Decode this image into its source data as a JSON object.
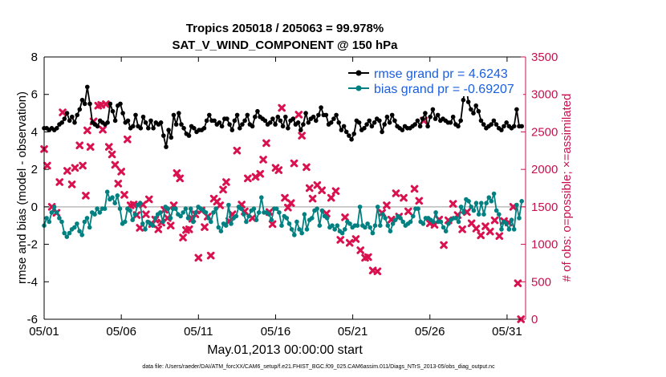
{
  "chart_data": {
    "type": "line",
    "title_line1": "Tropics 205018 / 205063 = 99.978%",
    "title_line2": "SAT_V_WIND_COMPONENT @ 150 hPa",
    "xlabel": "May.01,2013 00:00:00 start",
    "ylabel_left": "rmse and bias (model - observation)",
    "ylabel_right": "# of obs: o=possible; ×=assimilated",
    "footer": "data file: /Users/raeder/DAI/ATM_forcXX/CAM6_setup/f.e21.FHIST_BGC.f09_025.CAM6assim.011/Diags_NTrS_2013-05/obs_diag_output.nc",
    "x_ticks": [
      {
        "label": "05/01",
        "day": 1
      },
      {
        "label": "05/06",
        "day": 6
      },
      {
        "label": "05/11",
        "day": 11
      },
      {
        "label": "05/16",
        "day": 16
      },
      {
        "label": "05/21",
        "day": 21
      },
      {
        "label": "05/26",
        "day": 26
      },
      {
        "label": "05/31",
        "day": 31
      }
    ],
    "xlim": [
      1,
      32.2
    ],
    "ylim_left": [
      -6,
      8
    ],
    "y_ticks_left": [
      "-6",
      "-4",
      "-2",
      "0",
      "2",
      "4",
      "6",
      "8"
    ],
    "ylim_right": [
      0,
      3500
    ],
    "y_ticks_right": [
      "0",
      "500",
      "1000",
      "1500",
      "2000",
      "2500",
      "3000",
      "3500"
    ],
    "legend": [
      {
        "label": "rmse grand pr = 4.6243",
        "color": "#000000"
      },
      {
        "label": "bias grand pr = -0.69207",
        "color": "#008080"
      }
    ],
    "colors": {
      "rmse": "#000000",
      "bias": "#008080",
      "obs": "#d9124f",
      "right_axis": "#c8104f",
      "legend_text": "#1a5fe0",
      "zero_line": "#bbbbbb"
    },
    "series": [
      {
        "name": "rmse",
        "values": [
          4.2,
          4.2,
          4.1,
          4.2,
          4.1,
          4.2,
          4.4,
          4.5,
          4.7,
          5.0,
          4.6,
          4.8,
          4.5,
          4.9,
          5.2,
          5.7,
          5.5,
          6.4,
          5.5,
          4.5,
          4.4,
          4.3,
          4.6,
          4.5,
          4.4,
          4.5,
          5.5,
          5.1,
          4.6,
          5.4,
          5.5,
          5.0,
          4.5,
          4.6,
          4.2,
          4.3,
          4.9,
          4.3,
          4.2,
          4.8,
          4.5,
          4.2,
          4.6,
          4.2,
          4.5,
          4.4,
          4.5,
          3.8,
          3.2,
          4.1,
          3.7,
          4.9,
          4.4,
          5.0,
          4.4,
          4.2,
          3.9,
          3.8,
          4.3,
          4.2,
          4.0,
          4.1,
          4.1,
          4.2,
          4.6,
          4.9,
          4.6,
          4.6,
          4.4,
          4.5,
          4.3,
          4.7,
          4.7,
          4.4,
          4.1,
          4.6,
          4.9,
          4.2,
          4.4,
          4.6,
          4.9,
          4.4,
          4.3,
          4.8,
          5.1,
          4.8,
          4.7,
          4.6,
          4.4,
          4.5,
          4.7,
          4.4,
          4.8,
          4.6,
          4.3,
          4.8,
          4.2,
          4.6,
          4.7,
          4.4,
          4.5,
          4.1,
          4.4,
          5.0,
          4.5,
          4.7,
          4.8,
          4.6,
          4.9,
          5.3,
          4.9,
          4.9,
          4.4,
          4.5,
          4.7,
          4.9,
          4.5,
          4.1,
          4.3,
          4.0,
          3.8,
          3.6,
          3.9,
          4.6,
          4.5,
          4.1,
          4.2,
          4.4,
          4.6,
          4.3,
          4.5,
          4.7,
          4.6,
          4.0,
          4.4,
          4.8,
          4.5,
          4.9,
          4.6,
          4.3,
          4.2,
          4.1,
          4.3,
          4.2,
          4.2,
          4.3,
          4.4,
          4.6,
          4.3,
          4.7,
          5.0,
          4.3,
          4.8,
          5.2,
          4.7,
          4.9,
          4.6,
          4.7,
          4.6,
          4.5,
          4.5,
          4.8,
          4.4,
          4.3,
          4.6,
          5.7,
          6.6,
          5.6,
          5.2,
          5.0,
          5.4,
          5.1,
          4.6,
          4.4,
          4.2,
          4.3,
          4.4,
          4.6,
          4.4,
          4.2,
          4.1,
          4.3,
          4.5,
          4.3,
          4.2,
          4.3,
          5.2,
          4.3,
          4.3
        ]
      },
      {
        "name": "bias",
        "values": [
          -1.0,
          -0.6,
          -0.8,
          -0.3,
          0.0,
          -0.3,
          -0.6,
          -0.8,
          -1.4,
          -1.6,
          -1.4,
          -1.2,
          -1.1,
          -0.9,
          -1.3,
          -1.5,
          -0.8,
          -0.6,
          -1.1,
          -0.3,
          -0.4,
          -0.1,
          -0.3,
          -0.1,
          -0.1,
          0.8,
          0.4,
          0.5,
          0.2,
          0.6,
          -0.1,
          -0.9,
          -0.8,
          -0.1,
          -0.2,
          -0.7,
          -0.4,
          0.1,
          0.2,
          -0.9,
          -1.2,
          -0.8,
          -0.9,
          -1.0,
          -0.6,
          -0.4,
          -0.3,
          -0.8,
          0.0,
          -0.1,
          -0.6,
          -0.1,
          -0.1,
          -0.4,
          -0.5,
          -0.3,
          -0.1,
          -0.6,
          -0.1,
          -0.8,
          -0.3,
          0.0,
          -0.1,
          -0.2,
          -0.3,
          -0.6,
          -0.8,
          -0.3,
          -0.1,
          -1.1,
          -1.3,
          -0.9,
          -1.0,
          0.1,
          -0.9,
          -0.6,
          -0.5,
          0.0,
          -0.1,
          -0.4,
          -0.8,
          -0.5,
          -0.2,
          -0.1,
          -0.7,
          -0.3,
          0.5,
          -0.3,
          -0.3,
          -0.4,
          -0.7,
          -0.1,
          -0.1,
          -0.3,
          -1.0,
          -0.5,
          -0.6,
          -0.9,
          -1.2,
          -1.5,
          -0.8,
          -1.2,
          -1.4,
          -0.4,
          -1.2,
          -0.7,
          -0.6,
          -0.2,
          -0.1,
          -1.0,
          -0.2,
          -0.5,
          -0.6,
          -1.1,
          -1.0,
          -1.2,
          -1.0,
          -1.3,
          -1.4,
          -1.2,
          -0.8,
          -0.9,
          -1.1,
          -1.0,
          -1.0,
          0.0,
          -1.0,
          -1.1,
          -0.9,
          -1.1,
          -1.4,
          -1.0,
          0.0,
          -1.0,
          -0.4,
          -0.6,
          -1.0,
          -1.3,
          -0.9,
          -0.7,
          -0.5,
          -0.6,
          -0.8,
          -1.0,
          -0.9,
          -0.8,
          -0.5,
          -0.1,
          -0.1,
          -0.8,
          -0.9,
          -0.6,
          -0.6,
          -0.7,
          -0.8,
          -0.3,
          -0.8,
          -0.8,
          -1.1,
          -1.3,
          -0.9,
          -0.7,
          -0.6,
          -0.6,
          -0.8,
          0.0,
          -0.3,
          0.4,
          0.3,
          0.0,
          -0.2,
          0.2,
          -0.4,
          0.2,
          -0.4,
          0.2,
          0.5,
          0.3,
          0.7,
          -0.2,
          -0.4,
          -1.2,
          -0.8,
          -0.9,
          -1.2,
          -0.7,
          -1.2,
          0.1,
          -0.6,
          0.3
        ]
      },
      {
        "name": "obs_assimilated",
        "points": [
          [
            1.0,
            2270
          ],
          [
            1.2,
            2050
          ],
          [
            1.5,
            1500
          ],
          [
            1.8,
            1420
          ],
          [
            2.0,
            1830
          ],
          [
            2.2,
            2760
          ],
          [
            2.5,
            1980
          ],
          [
            2.8,
            1800
          ],
          [
            3.0,
            2020
          ],
          [
            3.3,
            2320
          ],
          [
            3.5,
            2050
          ],
          [
            3.7,
            1650
          ],
          [
            3.8,
            2520
          ],
          [
            4.0,
            2300
          ],
          [
            4.2,
            2640
          ],
          [
            4.5,
            2850
          ],
          [
            4.7,
            2860
          ],
          [
            4.8,
            2530
          ],
          [
            5.0,
            2870
          ],
          [
            5.2,
            2300
          ],
          [
            5.4,
            2200
          ],
          [
            5.6,
            2060
          ],
          [
            5.8,
            1810
          ],
          [
            6.0,
            1970
          ],
          [
            6.2,
            1660
          ],
          [
            6.4,
            2400
          ],
          [
            6.6,
            1520
          ],
          [
            6.8,
            1530
          ],
          [
            7.0,
            1390
          ],
          [
            7.2,
            1220
          ],
          [
            7.4,
            1530
          ],
          [
            7.6,
            1400
          ],
          [
            7.8,
            1600
          ],
          [
            8.0,
            1270
          ],
          [
            8.2,
            1330
          ],
          [
            8.4,
            1200
          ],
          [
            8.6,
            1290
          ],
          [
            8.8,
            1460
          ],
          [
            9.0,
            1350
          ],
          [
            9.2,
            1250
          ],
          [
            9.4,
            1520
          ],
          [
            9.6,
            1950
          ],
          [
            9.8,
            1880
          ],
          [
            10.0,
            1090
          ],
          [
            10.2,
            1190
          ],
          [
            10.4,
            1200
          ],
          [
            10.6,
            1340
          ],
          [
            10.8,
            1400
          ],
          [
            11.0,
            820
          ],
          [
            11.2,
            1450
          ],
          [
            11.4,
            1230
          ],
          [
            11.6,
            1370
          ],
          [
            11.8,
            850
          ],
          [
            12.0,
            1610
          ],
          [
            12.2,
            1570
          ],
          [
            12.4,
            1520
          ],
          [
            12.6,
            1730
          ],
          [
            12.8,
            1830
          ],
          [
            13.0,
            1310
          ],
          [
            13.2,
            1400
          ],
          [
            13.5,
            2250
          ],
          [
            13.8,
            1530
          ],
          [
            14.0,
            1440
          ],
          [
            14.2,
            1880
          ],
          [
            14.5,
            1350
          ],
          [
            14.7,
            1900
          ],
          [
            15.0,
            1940
          ],
          [
            15.2,
            2130
          ],
          [
            15.4,
            2350
          ],
          [
            15.6,
            1430
          ],
          [
            15.8,
            1270
          ],
          [
            16.0,
            2020
          ],
          [
            16.2,
            1990
          ],
          [
            16.4,
            2820
          ],
          [
            16.6,
            1620
          ],
          [
            16.8,
            1490
          ],
          [
            17.0,
            1550
          ],
          [
            17.2,
            2080
          ],
          [
            17.5,
            2730
          ],
          [
            17.7,
            2450
          ],
          [
            18.0,
            2030
          ],
          [
            18.2,
            1750
          ],
          [
            18.4,
            1610
          ],
          [
            18.7,
            1790
          ],
          [
            19.0,
            1720
          ],
          [
            19.3,
            1410
          ],
          [
            19.6,
            1620
          ],
          [
            19.9,
            1710
          ],
          [
            20.2,
            1060
          ],
          [
            20.5,
            1360
          ],
          [
            20.8,
            1020
          ],
          [
            21.2,
            1070
          ],
          [
            21.5,
            920
          ],
          [
            21.8,
            820
          ],
          [
            22.0,
            830
          ],
          [
            22.3,
            650
          ],
          [
            22.6,
            640
          ],
          [
            22.9,
            1420
          ],
          [
            23.2,
            1520
          ],
          [
            23.5,
            1330
          ],
          [
            23.8,
            1680
          ],
          [
            24.0,
            1370
          ],
          [
            24.3,
            1620
          ],
          [
            24.6,
            1440
          ],
          [
            25.0,
            1740
          ],
          [
            25.3,
            1580
          ],
          [
            25.6,
            2650
          ],
          [
            26.0,
            1280
          ],
          [
            26.3,
            1260
          ],
          [
            26.6,
            1330
          ],
          [
            26.9,
            990
          ],
          [
            27.2,
            1320
          ],
          [
            27.5,
            1540
          ],
          [
            27.8,
            1390
          ],
          [
            28.1,
            1200
          ],
          [
            28.4,
            1430
          ],
          [
            28.7,
            1280
          ],
          [
            29.0,
            1210
          ],
          [
            29.3,
            1120
          ],
          [
            29.6,
            1240
          ],
          [
            29.9,
            1170
          ],
          [
            30.2,
            1320
          ],
          [
            30.5,
            1110
          ],
          [
            30.8,
            1310
          ],
          [
            31.1,
            1290
          ],
          [
            31.4,
            1500
          ],
          [
            31.7,
            480
          ],
          [
            31.9,
            0
          ]
        ]
      }
    ]
  }
}
